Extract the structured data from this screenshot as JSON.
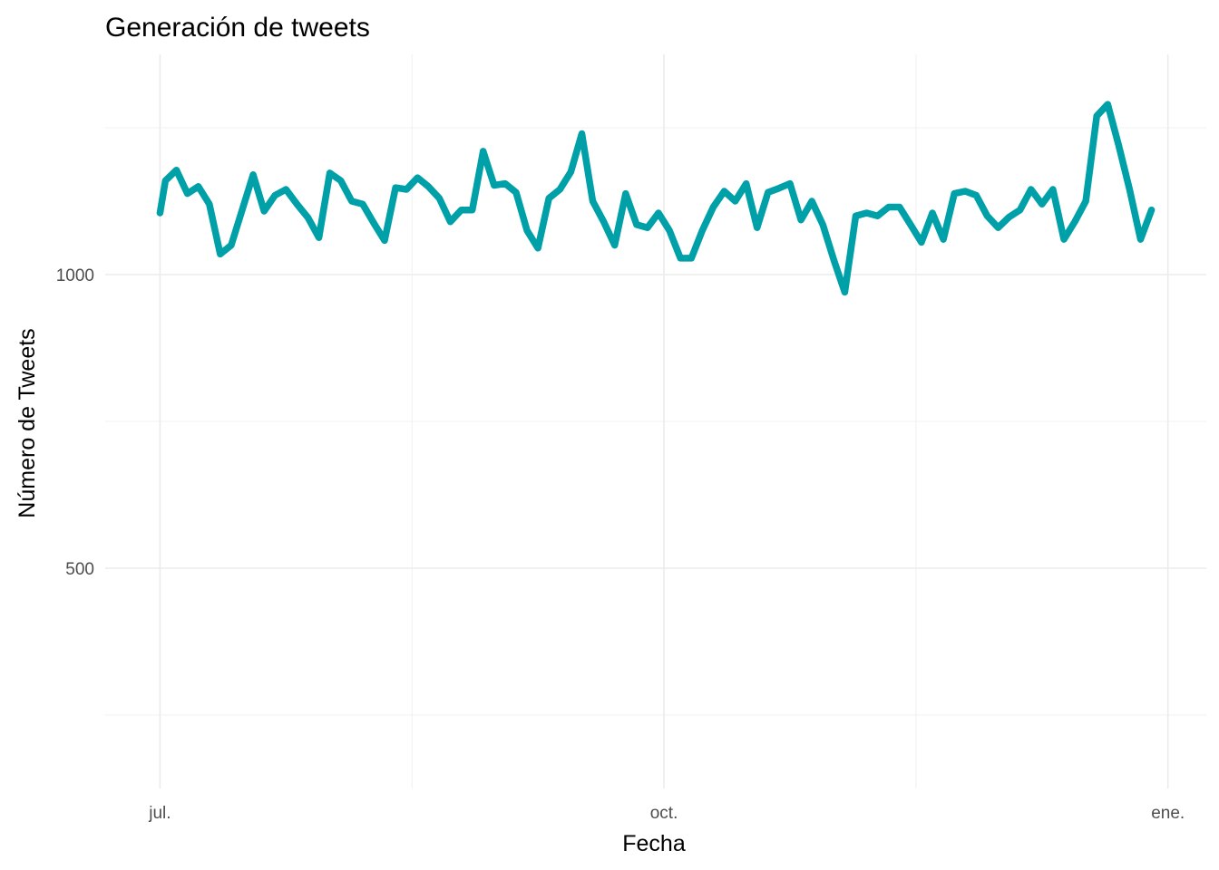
{
  "chart_data": {
    "type": "line",
    "title": "Generación de tweets",
    "xlabel": "Fecha",
    "ylabel": "Número de Tweets",
    "x_ticks": [
      {
        "label": "jul.",
        "date": "2022-07-01"
      },
      {
        "label": "oct.",
        "date": "2022-10-01"
      },
      {
        "label": "ene.",
        "date": "2023-01-01"
      }
    ],
    "y_ticks": [
      500,
      1000
    ],
    "xlim": [
      "2022-06-21",
      "2023-01-08"
    ],
    "ylim": [
      125,
      1375
    ],
    "grid": true,
    "line_color": "#00A0A8",
    "series": [
      {
        "points": [
          [
            "2022-07-01",
            1105
          ],
          [
            "2022-07-02",
            1160
          ],
          [
            "2022-07-04",
            1178
          ],
          [
            "2022-07-06",
            1138
          ],
          [
            "2022-07-08",
            1150
          ],
          [
            "2022-07-10",
            1120
          ],
          [
            "2022-07-12",
            1035
          ],
          [
            "2022-07-14",
            1050
          ],
          [
            "2022-07-18",
            1170
          ],
          [
            "2022-07-20",
            1108
          ],
          [
            "2022-07-22",
            1135
          ],
          [
            "2022-07-24",
            1145
          ],
          [
            "2022-07-26",
            1120
          ],
          [
            "2022-07-28",
            1097
          ],
          [
            "2022-07-30",
            1063
          ],
          [
            "2022-08-01",
            1173
          ],
          [
            "2022-08-03",
            1160
          ],
          [
            "2022-08-05",
            1125
          ],
          [
            "2022-08-07",
            1120
          ],
          [
            "2022-08-09",
            1088
          ],
          [
            "2022-08-11",
            1058
          ],
          [
            "2022-08-13",
            1148
          ],
          [
            "2022-08-15",
            1145
          ],
          [
            "2022-08-17",
            1165
          ],
          [
            "2022-08-19",
            1150
          ],
          [
            "2022-08-21",
            1130
          ],
          [
            "2022-08-23",
            1090
          ],
          [
            "2022-08-25",
            1110
          ],
          [
            "2022-08-27",
            1110
          ],
          [
            "2022-08-29",
            1210
          ],
          [
            "2022-08-31",
            1152
          ],
          [
            "2022-09-02",
            1155
          ],
          [
            "2022-09-04",
            1140
          ],
          [
            "2022-09-06",
            1075
          ],
          [
            "2022-09-08",
            1045
          ],
          [
            "2022-09-10",
            1130
          ],
          [
            "2022-09-12",
            1145
          ],
          [
            "2022-09-14",
            1175
          ],
          [
            "2022-09-16",
            1240
          ],
          [
            "2022-09-18",
            1125
          ],
          [
            "2022-09-20",
            1090
          ],
          [
            "2022-09-22",
            1050
          ],
          [
            "2022-09-24",
            1138
          ],
          [
            "2022-09-26",
            1085
          ],
          [
            "2022-09-28",
            1080
          ],
          [
            "2022-09-30",
            1105
          ],
          [
            "2022-10-02",
            1075
          ],
          [
            "2022-10-04",
            1028
          ],
          [
            "2022-10-06",
            1028
          ],
          [
            "2022-10-08",
            1075
          ],
          [
            "2022-10-10",
            1115
          ],
          [
            "2022-10-12",
            1142
          ],
          [
            "2022-10-14",
            1125
          ],
          [
            "2022-10-16",
            1155
          ],
          [
            "2022-10-18",
            1080
          ],
          [
            "2022-10-20",
            1140
          ],
          [
            "2022-10-22",
            1147
          ],
          [
            "2022-10-24",
            1155
          ],
          [
            "2022-10-26",
            1093
          ],
          [
            "2022-10-28",
            1125
          ],
          [
            "2022-10-30",
            1085
          ],
          [
            "2022-11-01",
            1025
          ],
          [
            "2022-11-03",
            970
          ],
          [
            "2022-11-05",
            1100
          ],
          [
            "2022-11-07",
            1105
          ],
          [
            "2022-11-09",
            1100
          ],
          [
            "2022-11-11",
            1115
          ],
          [
            "2022-11-13",
            1115
          ],
          [
            "2022-11-15",
            1085
          ],
          [
            "2022-11-17",
            1055
          ],
          [
            "2022-11-19",
            1105
          ],
          [
            "2022-11-21",
            1060
          ],
          [
            "2022-11-23",
            1138
          ],
          [
            "2022-11-25",
            1142
          ],
          [
            "2022-11-27",
            1135
          ],
          [
            "2022-11-29",
            1100
          ],
          [
            "2022-12-01",
            1080
          ],
          [
            "2022-12-03",
            1098
          ],
          [
            "2022-12-05",
            1110
          ],
          [
            "2022-12-07",
            1145
          ],
          [
            "2022-12-09",
            1120
          ],
          [
            "2022-12-11",
            1145
          ],
          [
            "2022-12-13",
            1060
          ],
          [
            "2022-12-15",
            1090
          ],
          [
            "2022-12-17",
            1125
          ],
          [
            "2022-12-19",
            1270
          ],
          [
            "2022-12-21",
            1290
          ],
          [
            "2022-12-23",
            1220
          ],
          [
            "2022-12-25",
            1145
          ],
          [
            "2022-12-27",
            1060
          ],
          [
            "2022-12-29",
            1110
          ]
        ]
      }
    ]
  }
}
